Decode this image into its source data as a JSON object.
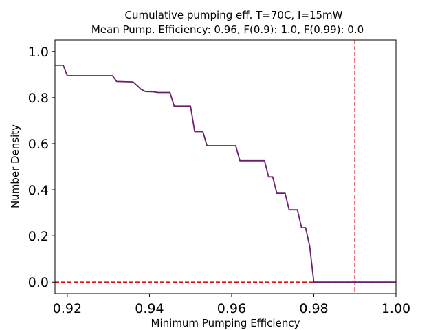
{
  "chart_data": {
    "type": "line",
    "title": "Cumulative pumping eff. T=70C, I=15mW",
    "subtitle": "Mean Pump. Efficiency: 0.96, F(0.9): 1.0, F(0.99): 0.0",
    "xlabel": "Minimum Pumping Efficiency",
    "ylabel": "Number Density",
    "xlim": [
      0.917,
      1.0
    ],
    "ylim": [
      -0.05,
      1.05
    ],
    "x_ticks": [
      0.92,
      0.94,
      0.96,
      0.98,
      1.0
    ],
    "x_tick_labels": [
      "0.92",
      "0.94",
      "0.96",
      "0.98",
      "1.00"
    ],
    "y_ticks": [
      0.0,
      0.2,
      0.4,
      0.6,
      0.8,
      1.0
    ],
    "y_tick_labels": [
      "0.0",
      "0.2",
      "0.4",
      "0.6",
      "0.8",
      "1.0"
    ],
    "grid": false,
    "series": [
      {
        "color": "#6a1f6e",
        "x": [
          0.917,
          0.919,
          0.92,
          0.931,
          0.932,
          0.936,
          0.937,
          0.938,
          0.939,
          0.941,
          0.942,
          0.945,
          0.946,
          0.95,
          0.951,
          0.953,
          0.954,
          0.961,
          0.962,
          0.968,
          0.969,
          0.97,
          0.971,
          0.973,
          0.974,
          0.976,
          0.977,
          0.978,
          0.979,
          0.98,
          0.981,
          1.0
        ],
        "y": [
          0.94,
          0.94,
          0.895,
          0.895,
          0.87,
          0.868,
          0.852,
          0.835,
          0.826,
          0.825,
          0.822,
          0.822,
          0.763,
          0.763,
          0.652,
          0.652,
          0.591,
          0.591,
          0.526,
          0.526,
          0.456,
          0.456,
          0.385,
          0.385,
          0.313,
          0.313,
          0.236,
          0.236,
          0.155,
          0.0,
          0.0,
          0.0
        ]
      }
    ],
    "reference_lines": [
      {
        "orientation": "horizontal",
        "value": 0.0,
        "color": "#dd1111",
        "style": "dashed"
      },
      {
        "orientation": "vertical",
        "value": 0.99,
        "color": "#dd1111",
        "style": "dashed"
      }
    ]
  }
}
